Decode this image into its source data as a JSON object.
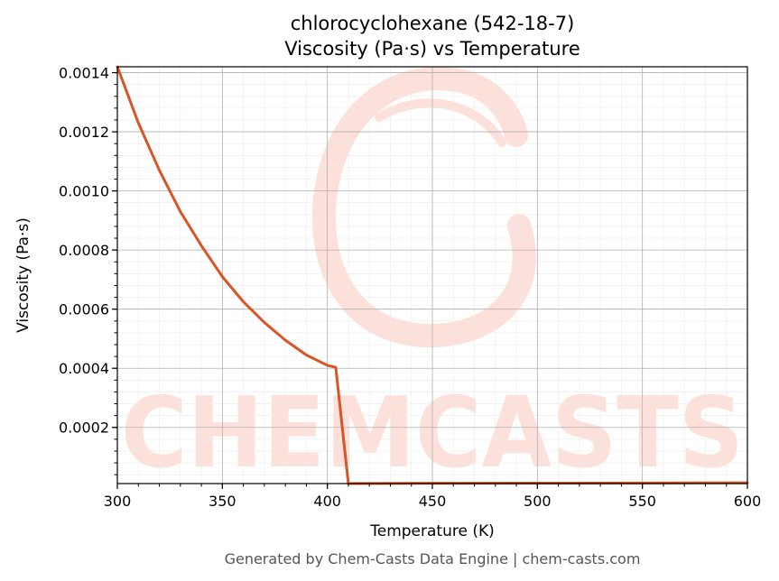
{
  "chart_data": {
    "type": "line",
    "title": "chlorocyclohexane (542-18-7)",
    "subtitle": "Viscosity (Pa·s) vs Temperature",
    "xlabel": "Temperature (K)",
    "ylabel": "Viscosity (Pa·s)",
    "xlim": [
      300,
      600
    ],
    "ylim": [
      1e-05,
      0.00142
    ],
    "x_ticks": [
      "300",
      "350",
      "400",
      "450",
      "500",
      "550",
      "600"
    ],
    "y_ticks": [
      "0.0002",
      "0.0004",
      "0.0006",
      "0.0008",
      "0.0010",
      "0.0012",
      "0.0014"
    ],
    "grid": true,
    "legend": "none",
    "series": [
      {
        "color": "#d95525",
        "x": [
          300,
          310,
          320,
          330,
          340,
          350,
          360,
          370,
          380,
          390,
          400,
          404,
          410,
          420,
          450,
          500,
          550,
          600
        ],
        "y": [
          0.00142,
          0.00123,
          0.00107,
          0.00093,
          0.000815,
          0.00071,
          0.000625,
          0.000555,
          0.000495,
          0.000445,
          0.00041,
          0.000403,
          1e-05,
          1.05e-05,
          1.1e-05,
          1.15e-05,
          1.2e-05,
          1.25e-05
        ]
      }
    ]
  },
  "watermark": {
    "text": "CHEMCASTS",
    "color": "#fde0da"
  },
  "footer": "Generated by Chem-Casts Data Engine | chem-casts.com"
}
